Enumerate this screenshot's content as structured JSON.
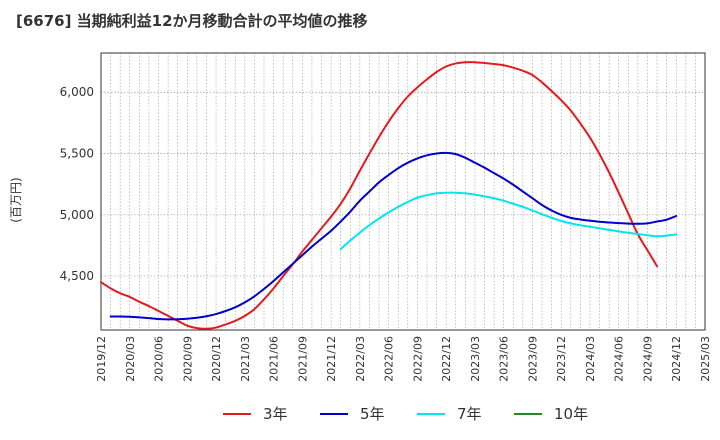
{
  "chart_data": {
    "type": "line",
    "title": "[6676]  当期純利益12か月移動合計の平均値の推移",
    "ylabel": "(百万円)",
    "xlabel": "",
    "ylim": [
      4060,
      6320
    ],
    "xlim": [
      "2019-12",
      "2025-03"
    ],
    "y_ticks": [
      4500,
      5000,
      5500,
      6000
    ],
    "y_tick_labels": [
      "4,500",
      "5,000",
      "5,500",
      "6,000"
    ],
    "x_tick_labels": [
      "2019/12",
      "2020/03",
      "2020/06",
      "2020/09",
      "2020/12",
      "2021/03",
      "2021/06",
      "2021/09",
      "2021/12",
      "2022/03",
      "2022/06",
      "2022/09",
      "2022/12",
      "2023/03",
      "2023/06",
      "2023/09",
      "2023/12",
      "2024/03",
      "2024/06",
      "2024/09",
      "2024/12",
      "2025/03"
    ],
    "grid": true,
    "legend_position": "bottom",
    "series": [
      {
        "name": "3年",
        "color": "#e41a1c",
        "points": [
          [
            "2019-12",
            4450
          ],
          [
            "2020-01",
            4400
          ],
          [
            "2020-02",
            4360
          ],
          [
            "2020-03",
            4330
          ],
          [
            "2020-04",
            4290
          ],
          [
            "2020-05",
            4255
          ],
          [
            "2020-06",
            4215
          ],
          [
            "2020-07",
            4175
          ],
          [
            "2020-08",
            4135
          ],
          [
            "2020-09",
            4095
          ],
          [
            "2020-10",
            4075
          ],
          [
            "2020-11",
            4070
          ],
          [
            "2020-12",
            4080
          ],
          [
            "2021-01",
            4105
          ],
          [
            "2021-02",
            4135
          ],
          [
            "2021-03",
            4175
          ],
          [
            "2021-04",
            4230
          ],
          [
            "2021-05",
            4310
          ],
          [
            "2021-06",
            4400
          ],
          [
            "2021-07",
            4500
          ],
          [
            "2021-08",
            4595
          ],
          [
            "2021-09",
            4700
          ],
          [
            "2021-10",
            4795
          ],
          [
            "2021-11",
            4890
          ],
          [
            "2021-12",
            4985
          ],
          [
            "2022-01",
            5090
          ],
          [
            "2022-02",
            5215
          ],
          [
            "2022-03",
            5360
          ],
          [
            "2022-04",
            5500
          ],
          [
            "2022-05",
            5635
          ],
          [
            "2022-06",
            5760
          ],
          [
            "2022-07",
            5870
          ],
          [
            "2022-08",
            5965
          ],
          [
            "2022-09",
            6040
          ],
          [
            "2022-10",
            6105
          ],
          [
            "2022-11",
            6165
          ],
          [
            "2022-12",
            6210
          ],
          [
            "2023-01",
            6235
          ],
          [
            "2023-02",
            6245
          ],
          [
            "2023-03",
            6245
          ],
          [
            "2023-04",
            6238
          ],
          [
            "2023-05",
            6230
          ],
          [
            "2023-06",
            6220
          ],
          [
            "2023-07",
            6200
          ],
          [
            "2023-08",
            6175
          ],
          [
            "2023-09",
            6140
          ],
          [
            "2023-10",
            6080
          ],
          [
            "2023-11",
            6010
          ],
          [
            "2023-12",
            5935
          ],
          [
            "2024-01",
            5850
          ],
          [
            "2024-02",
            5745
          ],
          [
            "2024-03",
            5630
          ],
          [
            "2024-04",
            5495
          ],
          [
            "2024-05",
            5345
          ],
          [
            "2024-06",
            5180
          ],
          [
            "2024-07",
            5010
          ],
          [
            "2024-08",
            4840
          ],
          [
            "2024-09",
            4710
          ],
          [
            "2024-10",
            4580
          ]
        ]
      },
      {
        "name": "5年",
        "color": "#0000cc",
        "points": [
          [
            "2020-01",
            4170
          ],
          [
            "2020-02",
            4170
          ],
          [
            "2020-03",
            4168
          ],
          [
            "2020-04",
            4163
          ],
          [
            "2020-05",
            4157
          ],
          [
            "2020-06",
            4150
          ],
          [
            "2020-07",
            4147
          ],
          [
            "2020-08",
            4148
          ],
          [
            "2020-09",
            4152
          ],
          [
            "2020-10",
            4160
          ],
          [
            "2020-11",
            4172
          ],
          [
            "2020-12",
            4190
          ],
          [
            "2021-01",
            4215
          ],
          [
            "2021-02",
            4245
          ],
          [
            "2021-03",
            4285
          ],
          [
            "2021-04",
            4335
          ],
          [
            "2021-05",
            4395
          ],
          [
            "2021-06",
            4460
          ],
          [
            "2021-07",
            4530
          ],
          [
            "2021-08",
            4600
          ],
          [
            "2021-09",
            4670
          ],
          [
            "2021-10",
            4740
          ],
          [
            "2021-11",
            4805
          ],
          [
            "2021-12",
            4870
          ],
          [
            "2022-01",
            4945
          ],
          [
            "2022-02",
            5025
          ],
          [
            "2022-03",
            5115
          ],
          [
            "2022-04",
            5190
          ],
          [
            "2022-05",
            5265
          ],
          [
            "2022-06",
            5325
          ],
          [
            "2022-07",
            5380
          ],
          [
            "2022-08",
            5425
          ],
          [
            "2022-09",
            5460
          ],
          [
            "2022-10",
            5485
          ],
          [
            "2022-11",
            5500
          ],
          [
            "2022-12",
            5505
          ],
          [
            "2023-01",
            5495
          ],
          [
            "2023-02",
            5465
          ],
          [
            "2023-03",
            5425
          ],
          [
            "2023-04",
            5385
          ],
          [
            "2023-05",
            5340
          ],
          [
            "2023-06",
            5295
          ],
          [
            "2023-07",
            5245
          ],
          [
            "2023-08",
            5190
          ],
          [
            "2023-09",
            5135
          ],
          [
            "2023-10",
            5080
          ],
          [
            "2023-11",
            5035
          ],
          [
            "2023-12",
            5000
          ],
          [
            "2024-01",
            4975
          ],
          [
            "2024-02",
            4962
          ],
          [
            "2024-03",
            4952
          ],
          [
            "2024-04",
            4943
          ],
          [
            "2024-05",
            4937
          ],
          [
            "2024-06",
            4932
          ],
          [
            "2024-07",
            4928
          ],
          [
            "2024-08",
            4927
          ],
          [
            "2024-09",
            4930
          ],
          [
            "2024-10",
            4945
          ],
          [
            "2024-11",
            4960
          ],
          [
            "2024-12",
            4990
          ]
        ]
      },
      {
        "name": "7年",
        "color": "#00e5ee",
        "points": [
          [
            "2022-01",
            4720
          ],
          [
            "2022-02",
            4790
          ],
          [
            "2022-03",
            4855
          ],
          [
            "2022-04",
            4915
          ],
          [
            "2022-05",
            4970
          ],
          [
            "2022-06",
            5020
          ],
          [
            "2022-07",
            5065
          ],
          [
            "2022-08",
            5105
          ],
          [
            "2022-09",
            5140
          ],
          [
            "2022-10",
            5160
          ],
          [
            "2022-11",
            5175
          ],
          [
            "2022-12",
            5180
          ],
          [
            "2023-01",
            5180
          ],
          [
            "2023-02",
            5175
          ],
          [
            "2023-03",
            5165
          ],
          [
            "2023-04",
            5150
          ],
          [
            "2023-05",
            5135
          ],
          [
            "2023-06",
            5115
          ],
          [
            "2023-07",
            5090
          ],
          [
            "2023-08",
            5065
          ],
          [
            "2023-09",
            5035
          ],
          [
            "2023-10",
            5005
          ],
          [
            "2023-11",
            4975
          ],
          [
            "2023-12",
            4950
          ],
          [
            "2024-01",
            4930
          ],
          [
            "2024-02",
            4915
          ],
          [
            "2024-03",
            4903
          ],
          [
            "2024-04",
            4890
          ],
          [
            "2024-05",
            4877
          ],
          [
            "2024-06",
            4865
          ],
          [
            "2024-07",
            4853
          ],
          [
            "2024-08",
            4843
          ],
          [
            "2024-09",
            4833
          ],
          [
            "2024-10",
            4825
          ],
          [
            "2024-11",
            4830
          ],
          [
            "2024-12",
            4840
          ]
        ]
      },
      {
        "name": "10年",
        "color": "#228b22",
        "points": []
      }
    ]
  }
}
